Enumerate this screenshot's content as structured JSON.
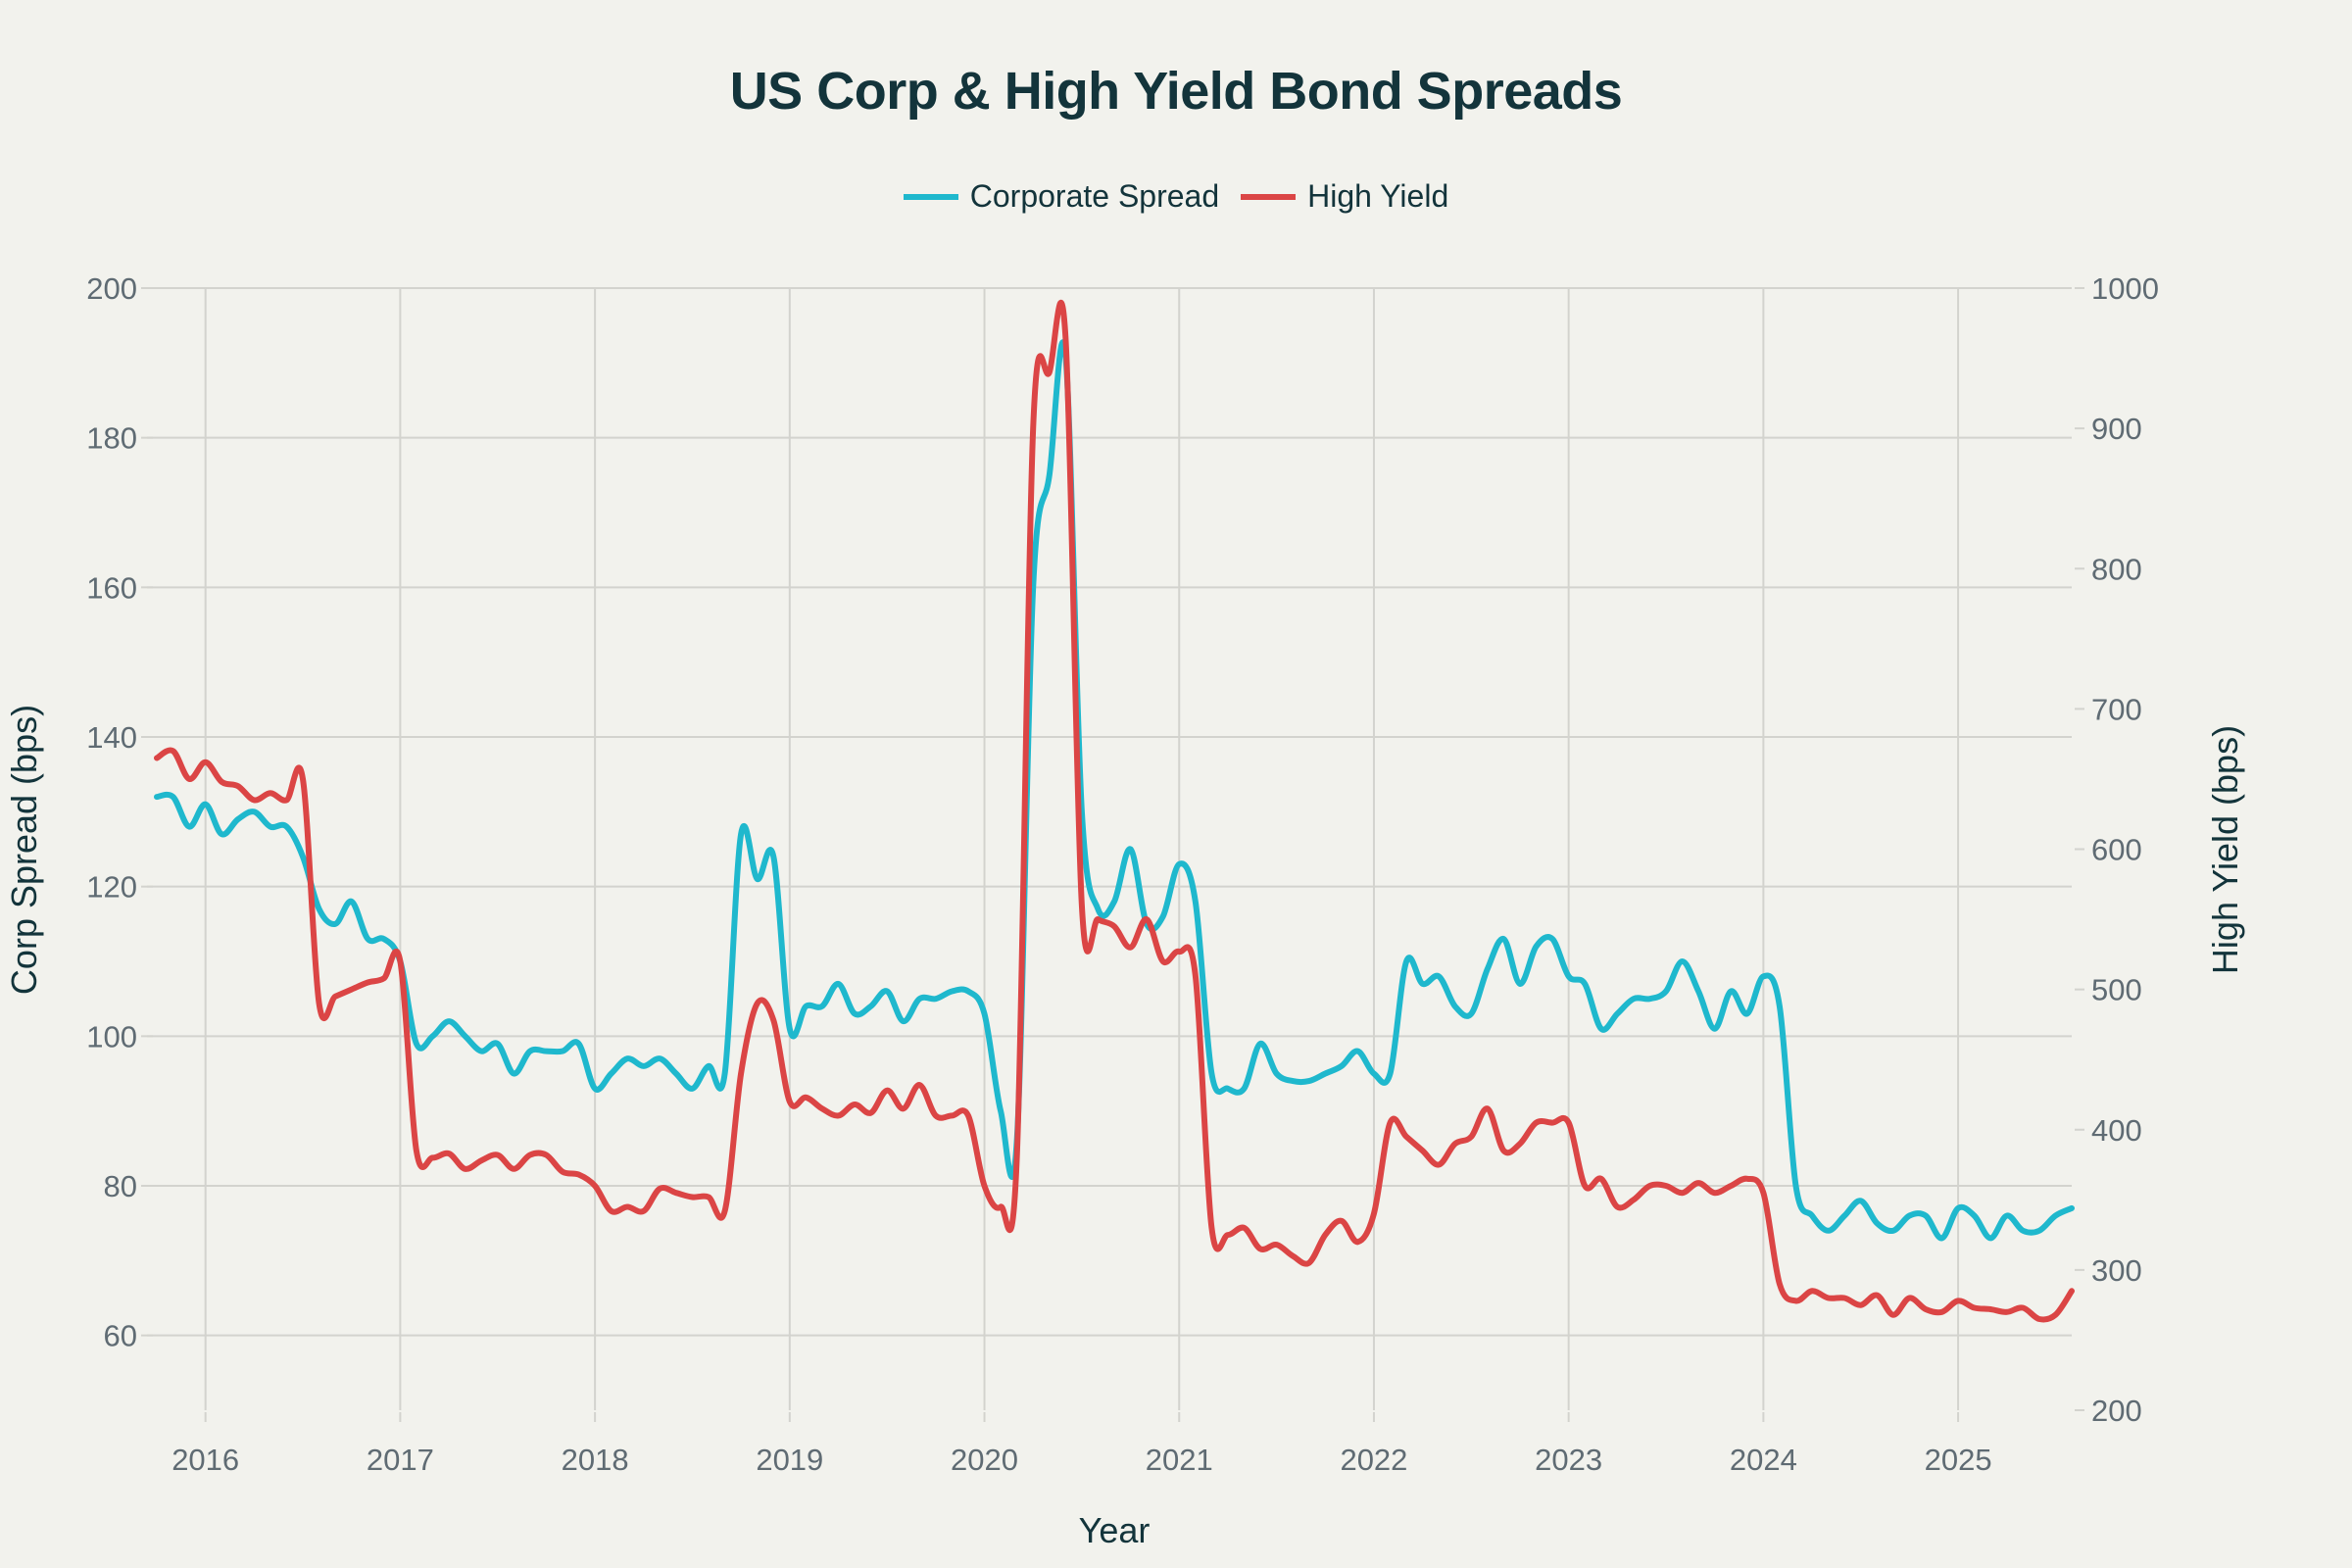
{
  "chart_data": {
    "type": "line",
    "title": "US Corp & High Yield Bond Spreads",
    "xlabel": "Year",
    "ylabel": "Corp Spread (bps)",
    "y2label": "High Yield (bps)",
    "legend_position": "top-center",
    "grid": true,
    "x_start": "2015-10",
    "x_frequency": "monthly",
    "x_range": [
      "2015-10",
      "2025-08"
    ],
    "x_ticks": [
      "2016",
      "2017",
      "2018",
      "2019",
      "2020",
      "2021",
      "2022",
      "2023",
      "2024",
      "2025"
    ],
    "ylim": [
      50,
      200
    ],
    "y_ticks": [
      60,
      80,
      100,
      120,
      140,
      160,
      180,
      200
    ],
    "y2lim": [
      200,
      1000
    ],
    "y2_ticks": [
      200,
      300,
      400,
      500,
      600,
      700,
      800,
      900,
      1000
    ],
    "series": [
      {
        "name": "Corporate Spread",
        "axis": "left",
        "color": "#1fb8cd",
        "values": [
          132,
          132,
          128,
          131,
          127,
          129,
          130,
          128,
          128,
          124,
          117,
          115,
          118,
          113,
          113,
          110,
          99,
          100,
          102,
          100,
          98,
          99,
          95,
          98,
          98,
          98,
          99,
          93,
          95,
          97,
          96,
          97,
          95,
          93,
          96,
          95,
          127,
          121,
          124,
          101,
          104,
          104,
          107,
          103,
          104,
          106,
          102,
          105,
          105,
          106,
          106,
          103,
          90,
          86,
          160,
          175,
          191,
          130,
          117,
          118,
          125,
          115,
          116,
          123,
          118,
          95,
          93,
          93,
          99,
          95,
          94,
          94,
          95,
          96,
          98,
          95,
          95,
          110,
          107,
          108,
          104,
          103,
          109,
          113,
          107,
          112,
          113,
          108,
          107,
          101,
          103,
          105,
          105,
          106,
          110,
          106,
          101,
          106,
          103,
          108,
          104,
          80,
          76,
          74,
          76,
          78,
          75,
          74,
          76,
          76,
          73,
          77,
          76,
          73,
          76,
          74,
          74,
          76,
          77
        ]
      },
      {
        "name": "High Yield",
        "axis": "right",
        "color": "#db4545",
        "values": [
          665,
          670,
          650,
          662,
          648,
          645,
          635,
          640,
          635,
          650,
          490,
          495,
          500,
          505,
          508,
          520,
          385,
          380,
          383,
          372,
          378,
          382,
          372,
          382,
          382,
          370,
          368,
          360,
          342,
          345,
          342,
          358,
          355,
          352,
          352,
          342,
          440,
          490,
          478,
          420,
          423,
          415,
          410,
          418,
          412,
          428,
          415,
          432,
          410,
          410,
          410,
          360,
          345,
          380,
          900,
          940,
          965,
          560,
          550,
          545,
          530,
          550,
          520,
          527,
          510,
          330,
          325,
          330,
          315,
          318,
          310,
          305,
          325,
          335,
          320,
          340,
          405,
          395,
          385,
          375,
          390,
          395,
          415,
          385,
          390,
          405,
          405,
          405,
          360,
          365,
          345,
          350,
          360,
          360,
          355,
          362,
          355,
          360,
          365,
          355,
          290,
          278,
          285,
          280,
          280,
          275,
          282,
          268,
          280,
          272,
          270,
          278,
          273,
          272,
          270,
          273,
          265,
          268,
          285
        ]
      }
    ]
  }
}
